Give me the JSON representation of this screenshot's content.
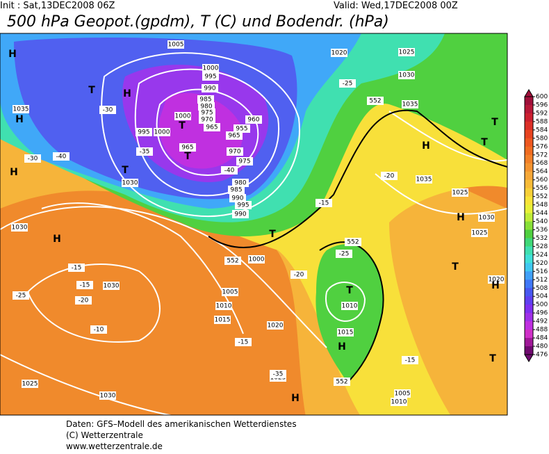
{
  "header": {
    "init": "Init : Sat,13DEC2008 06Z",
    "valid": "Valid: Wed,17DEC2008 00Z",
    "title": "500 hPa Geopot.(gpdm), T (C) und Bodendr. (hPa)"
  },
  "map": {
    "labels": [
      "H",
      "T",
      "H",
      "1035",
      "H",
      "1005",
      "1000",
      "995",
      "990",
      "985",
      "980",
      "975",
      "970",
      "965",
      "960",
      "955",
      "1000",
      "995",
      "1000",
      "T",
      "965",
      "T",
      "965",
      "970",
      "975",
      "980",
      "985",
      "990",
      "995",
      "990",
      "T",
      "1030",
      "H",
      "1030",
      "H",
      "1030",
      "-10",
      "1025",
      "1030",
      "1020",
      "1025",
      "1030",
      "1035",
      "H",
      "1035",
      "1025",
      "T",
      "T",
      "H",
      "1030",
      "1025",
      "T",
      "1020",
      "H",
      "T",
      "1010",
      "1005",
      "T",
      "1010",
      "1015",
      "H",
      "1020",
      "1015",
      "1010",
      "1005",
      "1000",
      "T",
      "H",
      "1025",
      "-35",
      "-40",
      "-30",
      "-25",
      "-20",
      "-15",
      "-15",
      "-15",
      "-20",
      "-25",
      "-30",
      "-35",
      "-40",
      "-15",
      "-20",
      "-25",
      "-15",
      "552",
      "552",
      "552",
      "552"
    ]
  },
  "legend": {
    "ticks": [
      600,
      596,
      592,
      588,
      584,
      580,
      576,
      572,
      568,
      564,
      560,
      556,
      552,
      548,
      544,
      540,
      536,
      532,
      528,
      524,
      520,
      516,
      512,
      508,
      504,
      500,
      496,
      492,
      488,
      484,
      480,
      476
    ],
    "colors": [
      "#a0103a",
      "#b81838",
      "#cc2030",
      "#dc3028",
      "#e84420",
      "#ee5820",
      "#f06c20",
      "#f28028",
      "#f49430",
      "#f6a838",
      "#f8bc38",
      "#f8d038",
      "#f8e438",
      "#e8f038",
      "#c0ec38",
      "#88e038",
      "#50d040",
      "#40d878",
      "#40e0b0",
      "#40e0d8",
      "#40c8f0",
      "#40a0f8",
      "#4078f8",
      "#4858f0",
      "#6040f0",
      "#8030f0",
      "#a030e8",
      "#c030e0",
      "#d030c8",
      "#a01898",
      "#700a70"
    ]
  },
  "footer": {
    "lines": [
      "Daten: GFS–Modell des amerikanischen Wetterdienstes",
      "(C) Wetterzentrale",
      "www.wetterzentrale.de"
    ]
  }
}
